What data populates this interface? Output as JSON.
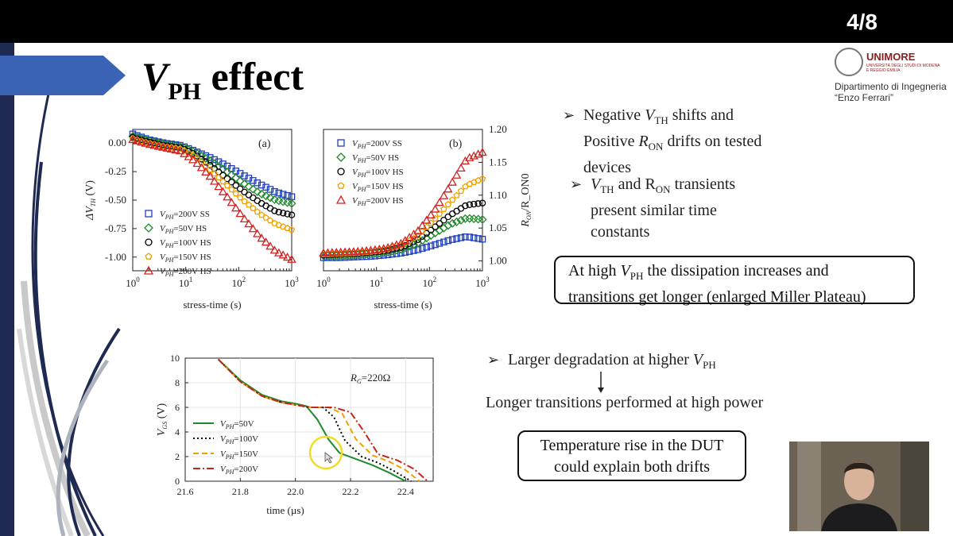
{
  "slide": {
    "page_number": "4/8",
    "title_main": "V",
    "title_sub": "PH",
    "title_rest": " effect"
  },
  "logo": {
    "name": "UNIMORE",
    "subname": "UNIVERSITÀ DEGLI STUDI DI MODENA E REGGIO EMILIA",
    "department_line1": "Dipartimento di Ingegneria",
    "department_line2": "“Enzo Ferrari”"
  },
  "bullets": {
    "b1_line1_pre": "Negative ",
    "b1_v": "V",
    "b1_vsub": "TH",
    "b1_line1_post": " shifts and",
    "b1_line2_pre": "Positive ",
    "b1_r": "R",
    "b1_rsub": "ON",
    "b1_line2_post": " drifts on tested",
    "b1_line3": "devices",
    "b2_v": "V",
    "b2_vsub": "TH",
    "b2_mid": " and R",
    "b2_rsub": "ON",
    "b2_post": " transients",
    "b2_line2": "present similar time",
    "b2_line3": "constants",
    "b3_pre": "Larger degradation at higher ",
    "b3_v": "V",
    "b3_vsub": "PH",
    "b3_follow": "Longer transitions performed at high power"
  },
  "boxes": {
    "box1_pre": "At high ",
    "box1_v": "V",
    "box1_vsub": "PH",
    "box1_post": " the dissipation increases and",
    "box1_line2": "transitions get longer  (enlarged Miller Plateau)",
    "box2_line1": "Temperature rise in the DUT",
    "box2_line2": "could explain both drifts"
  },
  "chart_data": [
    {
      "type": "scatter",
      "panel_label": "(a)",
      "xlabel": "stress-time (s)",
      "ylabel": "ΔV_TH (V)",
      "x_scale": "log",
      "xlim": [
        1,
        1000
      ],
      "ylim": [
        -1.12,
        0.12
      ],
      "x_ticks": [
        "10^0",
        "10^1",
        "10^2",
        "10^3"
      ],
      "y_ticks": [
        "0.00",
        "-0.25",
        "-0.50",
        "-0.75",
        "-1.00"
      ],
      "legend_position": "bottom-left",
      "series": [
        {
          "name": "V_PH=200V SS",
          "marker": "square",
          "color": "#1f3fbf",
          "x": [
            1,
            2,
            4,
            8,
            15,
            30,
            60,
            120,
            250,
            500,
            1000
          ],
          "y": [
            0.08,
            0.03,
            0.0,
            -0.02,
            -0.07,
            -0.13,
            -0.2,
            -0.28,
            -0.36,
            -0.43,
            -0.47
          ]
        },
        {
          "name": "V_PH=50V HS",
          "marker": "diamond",
          "color": "#1e8a2a",
          "x": [
            1,
            2,
            4,
            8,
            15,
            30,
            60,
            120,
            250,
            500,
            1000
          ],
          "y": [
            0.06,
            0.02,
            -0.01,
            -0.03,
            -0.08,
            -0.16,
            -0.25,
            -0.35,
            -0.44,
            -0.5,
            -0.53
          ]
        },
        {
          "name": "V_PH=100V HS",
          "marker": "circle",
          "color": "#000000",
          "x": [
            1,
            2,
            4,
            8,
            15,
            30,
            60,
            120,
            250,
            500,
            1000
          ],
          "y": [
            0.05,
            0.01,
            -0.02,
            -0.04,
            -0.1,
            -0.2,
            -0.31,
            -0.42,
            -0.52,
            -0.6,
            -0.63
          ]
        },
        {
          "name": "V_PH=150V HS",
          "marker": "pentagon",
          "color": "#f0a000",
          "x": [
            1,
            2,
            4,
            8,
            15,
            30,
            60,
            120,
            250,
            500,
            1000
          ],
          "y": [
            0.04,
            0.0,
            -0.03,
            -0.05,
            -0.12,
            -0.24,
            -0.37,
            -0.5,
            -0.62,
            -0.71,
            -0.76
          ]
        },
        {
          "name": "V_PH=200V HS",
          "marker": "triangle",
          "color": "#d42020",
          "x": [
            1,
            2,
            4,
            8,
            15,
            30,
            60,
            120,
            250,
            500,
            1000
          ],
          "y": [
            0.03,
            -0.01,
            -0.04,
            -0.07,
            -0.16,
            -0.3,
            -0.47,
            -0.65,
            -0.82,
            -0.95,
            -1.02
          ]
        }
      ]
    },
    {
      "type": "scatter",
      "panel_label": "(b)",
      "xlabel": "stress-time (s)",
      "ylabel": "R_ON/R_ON0",
      "x_scale": "log",
      "xlim": [
        1,
        1000
      ],
      "ylim": [
        0.985,
        1.2
      ],
      "x_ticks": [
        "10^0",
        "10^1",
        "10^2",
        "10^3"
      ],
      "y_ticks": [
        "1.20",
        "1.15",
        "1.10",
        "1.05",
        "1.00"
      ],
      "legend_position": "top-left",
      "series": [
        {
          "name": "V_PH=200V SS",
          "marker": "square",
          "color": "#1f3fbf",
          "x": [
            1,
            2,
            4,
            8,
            15,
            30,
            60,
            120,
            250,
            500,
            1000
          ],
          "y": [
            1.005,
            1.005,
            1.006,
            1.007,
            1.009,
            1.012,
            1.017,
            1.024,
            1.032,
            1.037,
            1.033
          ]
        },
        {
          "name": "V_PH=50V HS",
          "marker": "diamond",
          "color": "#1e8a2a",
          "x": [
            1,
            2,
            4,
            8,
            15,
            30,
            60,
            120,
            250,
            500,
            1000
          ],
          "y": [
            1.008,
            1.008,
            1.009,
            1.011,
            1.013,
            1.018,
            1.027,
            1.041,
            1.056,
            1.065,
            1.063
          ]
        },
        {
          "name": "V_PH=100V HS",
          "marker": "circle",
          "color": "#000000",
          "x": [
            1,
            2,
            4,
            8,
            15,
            30,
            60,
            120,
            250,
            500,
            1000
          ],
          "y": [
            1.009,
            1.01,
            1.011,
            1.013,
            1.015,
            1.021,
            1.032,
            1.05,
            1.07,
            1.085,
            1.088
          ]
        },
        {
          "name": "V_PH=150V HS",
          "marker": "pentagon",
          "color": "#f0a000",
          "x": [
            1,
            2,
            4,
            8,
            15,
            30,
            60,
            120,
            250,
            500,
            1000
          ],
          "y": [
            1.01,
            1.011,
            1.012,
            1.014,
            1.017,
            1.024,
            1.038,
            1.062,
            1.09,
            1.115,
            1.125
          ]
        },
        {
          "name": "V_PH=200V HS",
          "marker": "triangle",
          "color": "#d42020",
          "x": [
            1,
            2,
            4,
            8,
            15,
            30,
            60,
            120,
            250,
            500,
            1000
          ],
          "y": [
            1.012,
            1.013,
            1.014,
            1.016,
            1.019,
            1.027,
            1.045,
            1.075,
            1.115,
            1.155,
            1.165
          ]
        }
      ]
    },
    {
      "type": "line",
      "annotation": "R_G=220Ω",
      "xlabel": "time (µs)",
      "ylabel": "V_GS (V)",
      "xlim": [
        21.6,
        22.5
      ],
      "ylim": [
        0,
        10
      ],
      "x_ticks": [
        "21.6",
        "21.8",
        "22.0",
        "22.2",
        "22.4"
      ],
      "y_ticks": [
        "10",
        "8",
        "6",
        "4",
        "2",
        "0"
      ],
      "legend_position": "bottom-left",
      "series": [
        {
          "name": "V_PH=50V",
          "style": "solid",
          "color": "#1e8a2a",
          "x": [
            21.72,
            21.8,
            21.88,
            21.95,
            22.0,
            22.04,
            22.08,
            22.12,
            22.16,
            22.22,
            22.28,
            22.34,
            22.4
          ],
          "y": [
            9.9,
            8.2,
            7.0,
            6.5,
            6.3,
            6.1,
            5.0,
            3.4,
            2.3,
            1.8,
            1.3,
            0.7,
            0.0
          ]
        },
        {
          "name": "V_PH=100V",
          "style": "dotted",
          "color": "#000000",
          "x": [
            21.72,
            21.8,
            21.88,
            21.95,
            22.0,
            22.05,
            22.1,
            22.14,
            22.18,
            22.24,
            22.3,
            22.36,
            22.42
          ],
          "y": [
            9.9,
            8.1,
            6.9,
            6.4,
            6.2,
            6.0,
            6.0,
            5.2,
            3.3,
            2.0,
            1.5,
            0.8,
            0.0
          ]
        },
        {
          "name": "V_PH=150V",
          "style": "dashed",
          "color": "#f0a000",
          "x": [
            21.72,
            21.8,
            21.88,
            21.95,
            22.0,
            22.06,
            22.12,
            22.17,
            22.22,
            22.28,
            22.34,
            22.4,
            22.45
          ],
          "y": [
            9.9,
            8.1,
            6.9,
            6.4,
            6.2,
            6.0,
            6.0,
            5.5,
            3.4,
            2.1,
            1.6,
            0.9,
            0.0
          ]
        },
        {
          "name": "V_PH=200V",
          "style": "dash-dot",
          "color": "#c0281e",
          "x": [
            21.72,
            21.8,
            21.88,
            21.95,
            22.0,
            22.06,
            22.14,
            22.2,
            22.25,
            22.3,
            22.37,
            22.43,
            22.48
          ],
          "y": [
            9.9,
            8.1,
            6.9,
            6.4,
            6.2,
            6.0,
            6.0,
            5.6,
            4.0,
            2.2,
            1.7,
            1.0,
            0.0
          ]
        }
      ]
    }
  ],
  "colors": {
    "arrow_blue": "#3a63b5",
    "strip_navy": "#1e2a52",
    "cursor_ring": "#f2dc2a"
  }
}
